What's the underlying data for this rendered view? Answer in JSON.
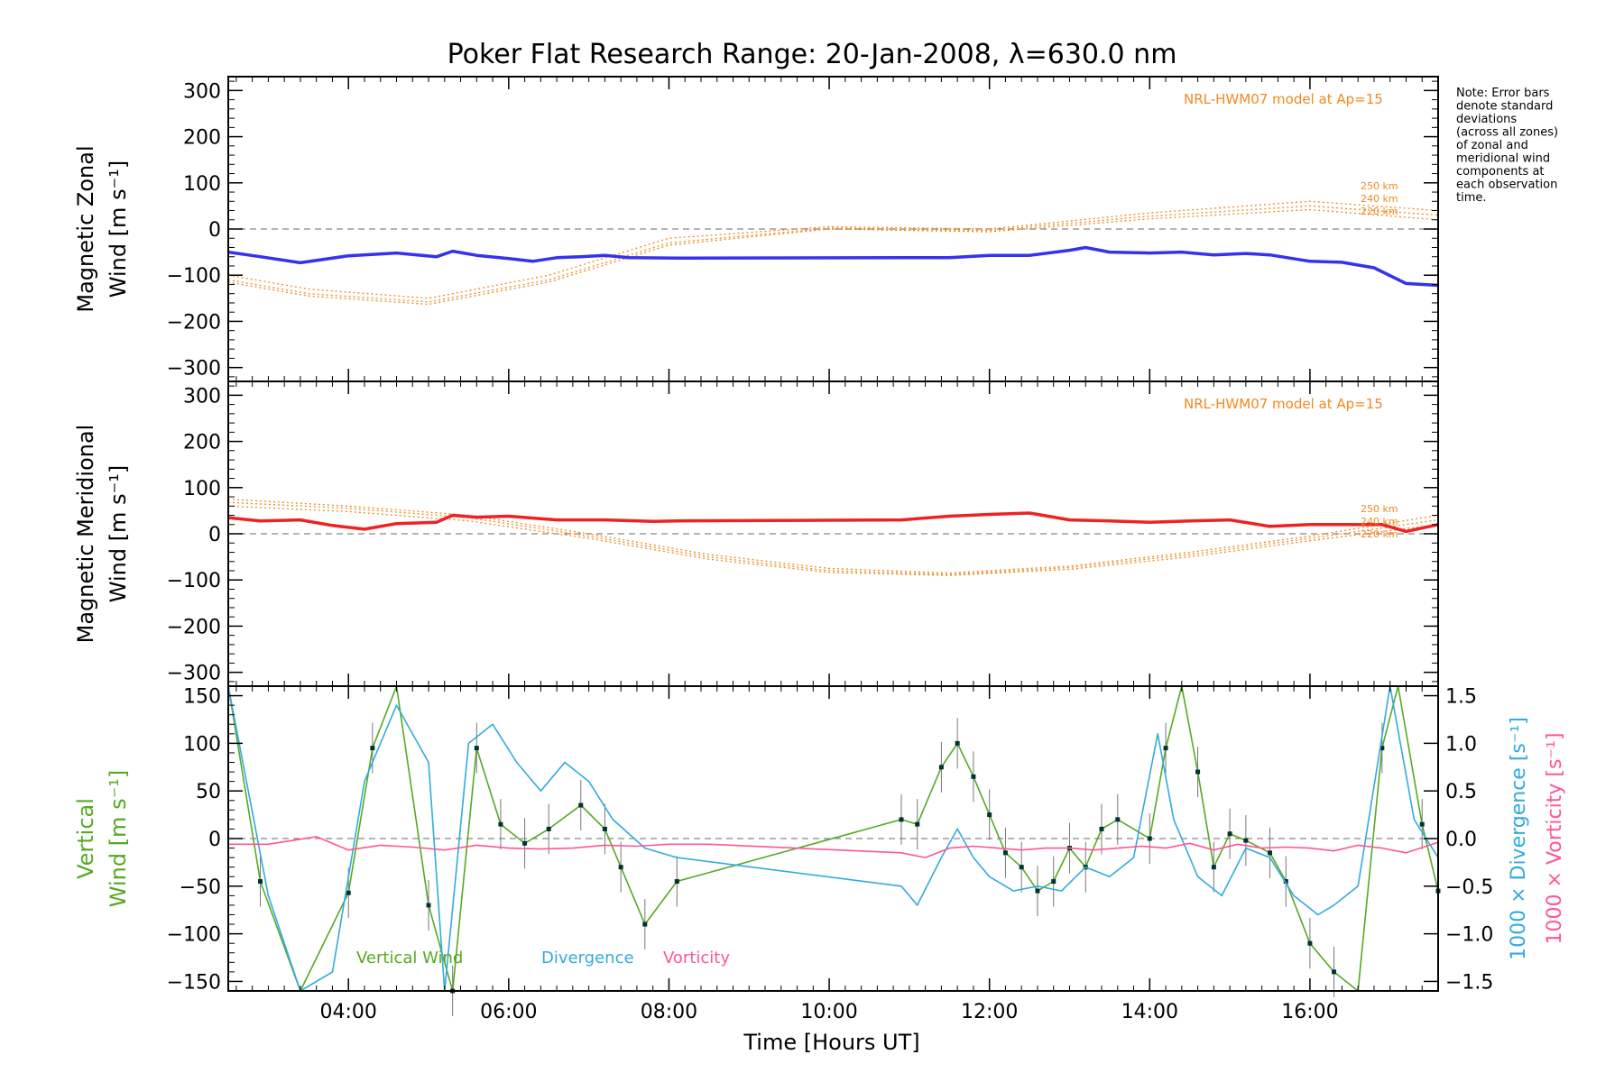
{
  "chart_data": {
    "type": "line",
    "title": "Poker Flat Research Range: 20-Jan-2008, λ=630.0 nm",
    "note": [
      "Note: Error bars",
      "denote standard",
      "deviations",
      "(across all zones)",
      "of zonal and",
      "meridional wind",
      "components at",
      "each observation",
      "time."
    ],
    "xlabel": "Time [Hours UT]",
    "xlim": [
      2.5,
      17.6
    ],
    "x_ticks": [
      {
        "value": 4,
        "label": "04:00"
      },
      {
        "value": 6,
        "label": "06:00"
      },
      {
        "value": 8,
        "label": "08:00"
      },
      {
        "value": 10,
        "label": "10:00"
      },
      {
        "value": 12,
        "label": "12:00"
      },
      {
        "value": 14,
        "label": "14:00"
      },
      {
        "value": 16,
        "label": "16:00"
      }
    ],
    "panels": [
      {
        "id": "zonal",
        "ylabel": [
          "Magnetic Zonal",
          "Wind [m s⁻¹]"
        ],
        "ylim": [
          -330,
          330
        ],
        "y_ticks": [
          300,
          200,
          100,
          0,
          -100,
          -200,
          -300
        ],
        "y_tick_labels": [
          "300",
          "200",
          "100",
          "0",
          "−100",
          "−200",
          "−300"
        ],
        "model_label": "NRL-HWM07 model at Ap=15",
        "model_altitudes": [
          "250 km",
          "240 km",
          "220 km"
        ],
        "series": [
          {
            "color": "#3333ee",
            "x": [
              2.5,
              2.9,
              3.4,
              4.0,
              4.6,
              5.1,
              5.3,
              5.6,
              6.0,
              6.3,
              6.6,
              6.9,
              7.2,
              7.5,
              8.1,
              10.9,
              11.5,
              12.0,
              12.5,
              13.0,
              13.2,
              13.5,
              14.0,
              14.4,
              14.8,
              15.2,
              15.5,
              16.0,
              16.4,
              16.8,
              17.2,
              17.6
            ],
            "y": [
              -50,
              -60,
              -73,
              -58,
              -52,
              -60,
              -48,
              -57,
              -64,
              -70,
              -62,
              -60,
              -57,
              -62,
              -63,
              -62,
              -62,
              -57,
              -57,
              -46,
              -40,
              -50,
              -52,
              -50,
              -56,
              -53,
              -56,
              -70,
              -72,
              -84,
              -118,
              -122
            ]
          }
        ],
        "model": [
          {
            "x": [
              2.5,
              3.5,
              5.0,
              6.5,
              8.0,
              10.0,
              12.0,
              14.0,
              16.0,
              17.6
            ],
            "y": [
              -100,
              -130,
              -150,
              -100,
              -20,
              5,
              0,
              35,
              60,
              40
            ]
          },
          {
            "x": [
              2.5,
              3.5,
              5.0,
              6.5,
              8.0,
              10.0,
              12.0,
              14.0,
              16.0,
              17.6
            ],
            "y": [
              -110,
              -140,
              -158,
              -110,
              -30,
              2,
              -3,
              28,
              50,
              30
            ]
          },
          {
            "x": [
              2.5,
              3.5,
              5.0,
              6.5,
              8.0,
              10.0,
              12.0,
              14.0,
              16.0,
              17.6
            ],
            "y": [
              -115,
              -145,
              -163,
              -115,
              -35,
              0,
              -6,
              22,
              42,
              20
            ]
          }
        ]
      },
      {
        "id": "meridional",
        "ylabel": [
          "Magnetic Meridional",
          "Wind [m s⁻¹]"
        ],
        "ylim": [
          -330,
          330
        ],
        "y_ticks": [
          300,
          200,
          100,
          0,
          -100,
          -200,
          -300
        ],
        "y_tick_labels": [
          "300",
          "200",
          "100",
          "0",
          "−100",
          "−200",
          "−300"
        ],
        "model_label": "NRL-HWM07 model at Ap=15",
        "model_altitudes": [
          "250 km",
          "240 km",
          "220 km"
        ],
        "series": [
          {
            "color": "#ee2222",
            "x": [
              2.5,
              2.9,
              3.4,
              3.8,
              4.2,
              4.6,
              5.1,
              5.3,
              5.6,
              6.0,
              6.6,
              7.2,
              7.8,
              8.1,
              10.9,
              11.5,
              12.0,
              12.5,
              13.0,
              13.5,
              14.0,
              14.5,
              15.0,
              15.5,
              16.0,
              16.5,
              16.9,
              17.2,
              17.6
            ],
            "y": [
              35,
              28,
              30,
              18,
              10,
              22,
              25,
              40,
              36,
              38,
              30,
              30,
              27,
              28,
              30,
              38,
              42,
              45,
              30,
              28,
              25,
              28,
              30,
              16,
              20,
              20,
              20,
              5,
              20
            ]
          }
        ],
        "model": [
          {
            "x": [
              2.5,
              4.0,
              5.5,
              7.0,
              8.5,
              10.0,
              11.5,
              13.0,
              14.5,
              16.0,
              17.6
            ],
            "y": [
              75,
              60,
              40,
              0,
              -45,
              -75,
              -85,
              -70,
              -40,
              -5,
              40
            ]
          },
          {
            "x": [
              2.5,
              4.0,
              5.5,
              7.0,
              8.5,
              10.0,
              11.5,
              13.0,
              14.5,
              16.0,
              17.6
            ],
            "y": [
              68,
              55,
              35,
              -5,
              -50,
              -80,
              -88,
              -73,
              -45,
              -10,
              30
            ]
          },
          {
            "x": [
              2.5,
              4.0,
              5.5,
              7.0,
              8.5,
              10.0,
              11.5,
              13.0,
              14.5,
              16.0,
              17.6
            ],
            "y": [
              60,
              48,
              28,
              -10,
              -55,
              -84,
              -90,
              -77,
              -50,
              -15,
              20
            ]
          }
        ]
      },
      {
        "id": "vertical",
        "ylabel": [
          "Vertical",
          "Wind [m s⁻¹]"
        ],
        "ylim": [
          -160,
          160
        ],
        "y_ticks": [
          150,
          100,
          50,
          0,
          -50,
          -100,
          -150
        ],
        "y_tick_labels": [
          "150",
          "100",
          "50",
          "0",
          "−50",
          "−100",
          "−150"
        ],
        "ylabel_right": [
          {
            "text": "1000 × Divergence [s⁻¹]",
            "color": "#33aadd"
          },
          {
            "text": "1000 × Vorticity [s⁻¹]",
            "color": "#ff5599"
          }
        ],
        "ylim_right": [
          -1.6,
          1.6
        ],
        "y_ticks_right": [
          1.5,
          1.0,
          0.5,
          0.0,
          -0.5,
          -1.0,
          -1.5
        ],
        "y_tick_labels_right": [
          "1.5",
          "1.0",
          "0.5",
          "0.0",
          "−0.5",
          "−1.0",
          "−1.5"
        ],
        "legend": [
          {
            "name": "Vertical Wind",
            "color": "#55aa22"
          },
          {
            "name": "Divergence",
            "color": "#33aadd"
          },
          {
            "name": "Vorticity",
            "color": "#ff5599"
          }
        ],
        "series": [
          {
            "name": "Vertical Wind",
            "color": "#55aa22",
            "axis": "left",
            "x": [
              2.5,
              2.9,
              3.4,
              4.0,
              4.3,
              4.6,
              5.0,
              5.3,
              5.6,
              5.9,
              6.2,
              6.5,
              6.9,
              7.2,
              7.4,
              7.7,
              8.1,
              10.9,
              11.1,
              11.4,
              11.6,
              11.8,
              12.0,
              12.2,
              12.4,
              12.6,
              12.8,
              13.0,
              13.2,
              13.4,
              13.6,
              14.0,
              14.2,
              14.4,
              14.6,
              14.8,
              15.0,
              15.2,
              15.5,
              15.7,
              16.0,
              16.3,
              16.6,
              16.9,
              17.1,
              17.4,
              17.6
            ],
            "y": [
              180,
              -45,
              -180,
              -57,
              95,
              180,
              -70,
              -160,
              95,
              15,
              -5,
              10,
              35,
              10,
              -30,
              -90,
              -45,
              20,
              15,
              75,
              100,
              65,
              25,
              -15,
              -30,
              -55,
              -45,
              -10,
              -30,
              10,
              20,
              0,
              95,
              180,
              70,
              -30,
              5,
              -2,
              -15,
              -45,
              -110,
              -140,
              -175,
              95,
              180,
              15,
              -55
            ]
          },
          {
            "name": "Divergence",
            "color": "#33aadd",
            "axis": "right",
            "x": [
              2.5,
              3.0,
              3.4,
              3.8,
              4.2,
              4.6,
              5.0,
              5.2,
              5.5,
              5.8,
              6.1,
              6.4,
              6.7,
              7.0,
              7.3,
              7.7,
              8.1,
              10.9,
              11.1,
              11.4,
              11.6,
              11.8,
              12.0,
              12.3,
              12.6,
              12.9,
              13.2,
              13.5,
              13.8,
              14.1,
              14.3,
              14.6,
              14.9,
              15.2,
              15.5,
              15.8,
              16.1,
              16.3,
              16.6,
              17.0,
              17.3,
              17.6
            ],
            "y": [
              1.6,
              -0.6,
              -1.6,
              -1.4,
              0.6,
              1.4,
              0.8,
              -1.6,
              1.0,
              1.2,
              0.8,
              0.5,
              0.8,
              0.6,
              0.2,
              -0.1,
              -0.2,
              -0.5,
              -0.7,
              -0.2,
              0.1,
              -0.2,
              -0.4,
              -0.55,
              -0.5,
              -0.55,
              -0.3,
              -0.4,
              -0.2,
              1.1,
              0.2,
              -0.4,
              -0.6,
              -0.1,
              -0.2,
              -0.6,
              -0.8,
              -0.7,
              -0.5,
              1.6,
              0.2,
              -0.2
            ]
          },
          {
            "name": "Vorticity",
            "color": "#ff5599",
            "axis": "right",
            "x": [
              2.5,
              3.0,
              3.6,
              4.0,
              4.4,
              4.8,
              5.2,
              5.6,
              6.0,
              6.4,
              6.8,
              7.2,
              7.6,
              8.0,
              8.5,
              10.9,
              11.2,
              11.5,
              11.8,
              12.1,
              12.4,
              12.7,
              13.0,
              13.3,
              13.6,
              13.9,
              14.2,
              14.5,
              14.8,
              15.1,
              15.4,
              15.7,
              16.0,
              16.3,
              16.6,
              16.9,
              17.2,
              17.6
            ],
            "y": [
              -0.06,
              -0.06,
              0.02,
              -0.12,
              -0.07,
              -0.09,
              -0.12,
              -0.07,
              -0.1,
              -0.11,
              -0.1,
              -0.07,
              -0.08,
              -0.06,
              -0.06,
              -0.15,
              -0.2,
              -0.1,
              -0.08,
              -0.1,
              -0.12,
              -0.1,
              -0.1,
              -0.12,
              -0.1,
              -0.08,
              -0.1,
              -0.05,
              -0.12,
              -0.06,
              -0.1,
              -0.09,
              -0.1,
              -0.13,
              -0.07,
              -0.1,
              -0.15,
              -0.04
            ]
          }
        ]
      }
    ]
  }
}
